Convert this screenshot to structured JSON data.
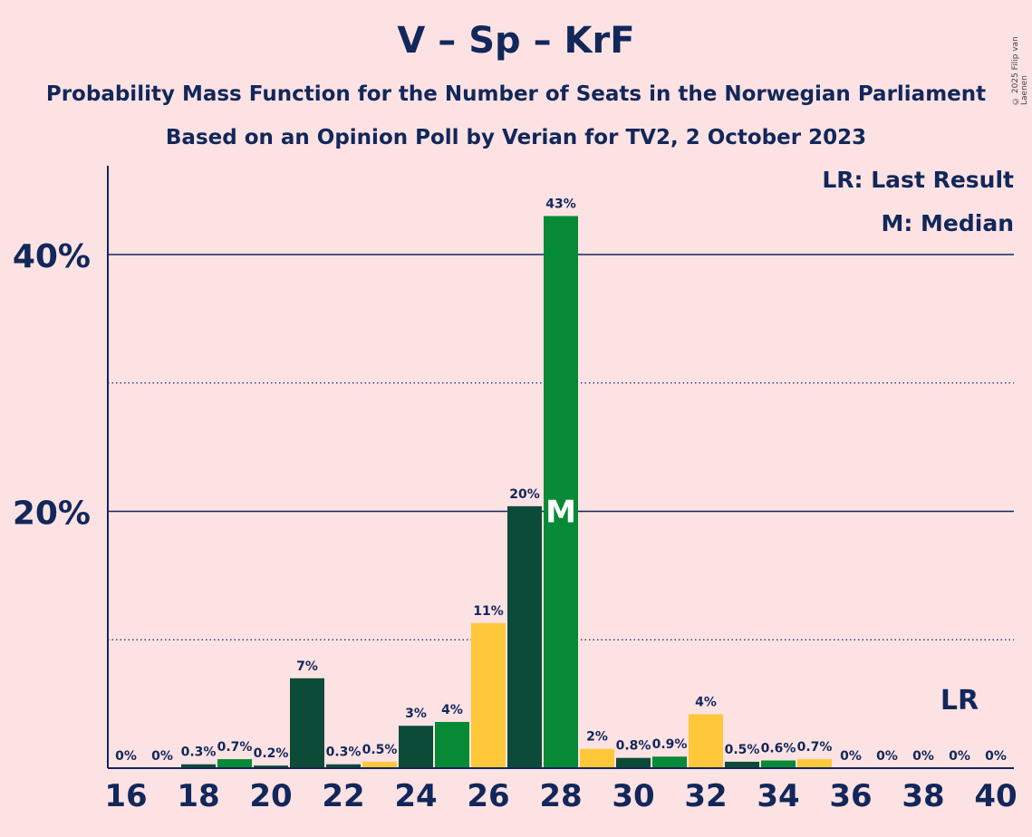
{
  "title": "V – Sp – KrF",
  "subtitle_1": "Probability Mass Function for the Number of Seats in the Norwegian Parliament",
  "subtitle_2": "Based on an Opinion Poll by Verian for TV2, 2 October 2023",
  "copyright": "© 2025 Filip van Laenen",
  "legend": {
    "last_result": "LR: Last Result",
    "median": "M: Median"
  },
  "colors": {
    "dark_green": "#0c4b37",
    "green": "#068a36",
    "yellow": "#ffc83a",
    "navy": "#12275a",
    "background": "#fde2e4"
  },
  "chart_data": {
    "type": "bar",
    "x": [
      16,
      17,
      18,
      19,
      20,
      21,
      22,
      23,
      24,
      25,
      26,
      27,
      28,
      29,
      30,
      31,
      32,
      33,
      34,
      35,
      36,
      37,
      38,
      39,
      40
    ],
    "values": [
      0,
      0,
      0.3,
      0.7,
      0.2,
      7,
      0.3,
      0.5,
      3.3,
      3.6,
      11.3,
      20.4,
      43,
      1.5,
      0.8,
      0.9,
      4.2,
      0.5,
      0.6,
      0.7,
      0,
      0,
      0,
      0,
      0
    ],
    "labels": [
      "0%",
      "0%",
      "0.3%",
      "0.7%",
      "0.2%",
      "7%",
      "0.3%",
      "0.5%",
      "3%",
      "4%",
      "11%",
      "20%",
      "43%",
      "2%",
      "0.8%",
      "0.9%",
      "4%",
      "0.5%",
      "0.6%",
      "0.7%",
      "0%",
      "0%",
      "0%",
      "0%",
      "0%"
    ],
    "bar_colors": [
      "green",
      "dark_green",
      "dark_green",
      "green",
      "dark_green",
      "dark_green",
      "dark_green",
      "yellow",
      "dark_green",
      "green",
      "yellow",
      "dark_green",
      "green",
      "yellow",
      "dark_green",
      "green",
      "yellow",
      "dark_green",
      "green",
      "yellow",
      "dark_green",
      "green",
      "yellow",
      "dark_green",
      "green"
    ],
    "x_ticks": [
      16,
      18,
      20,
      22,
      24,
      26,
      28,
      30,
      32,
      34,
      36,
      38,
      40
    ],
    "y_ticks": [
      20,
      40
    ],
    "y_tick_labels": [
      "20%",
      "40%"
    ],
    "y_minor_gridlines": [
      10,
      30
    ],
    "ylim": [
      0,
      47
    ],
    "median_seat": 28,
    "median_marker": "M",
    "last_result_seat": 39,
    "last_result_marker": "LR",
    "xlabel": "",
    "ylabel": ""
  }
}
